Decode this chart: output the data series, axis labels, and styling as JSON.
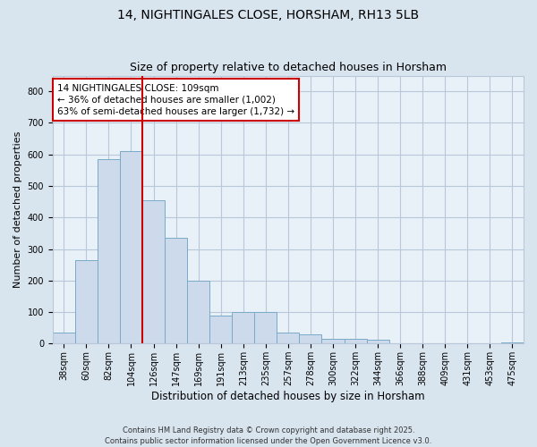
{
  "title": "14, NIGHTINGALES CLOSE, HORSHAM, RH13 5LB",
  "subtitle": "Size of property relative to detached houses in Horsham",
  "xlabel": "Distribution of detached houses by size in Horsham",
  "ylabel": "Number of detached properties",
  "categories": [
    "38sqm",
    "60sqm",
    "82sqm",
    "104sqm",
    "126sqm",
    "147sqm",
    "169sqm",
    "191sqm",
    "213sqm",
    "235sqm",
    "257sqm",
    "278sqm",
    "300sqm",
    "322sqm",
    "344sqm",
    "366sqm",
    "388sqm",
    "409sqm",
    "431sqm",
    "453sqm",
    "475sqm"
  ],
  "values": [
    35,
    265,
    585,
    610,
    455,
    335,
    200,
    90,
    100,
    100,
    35,
    30,
    15,
    15,
    12,
    0,
    0,
    0,
    0,
    0,
    5
  ],
  "bar_color": "#ccdaeb",
  "bar_edge_color": "#7aaac8",
  "vline_x": 3.5,
  "vline_color": "#cc0000",
  "annotation_text": "14 NIGHTINGALES CLOSE: 109sqm\n← 36% of detached houses are smaller (1,002)\n63% of semi-detached houses are larger (1,732) →",
  "annotation_box_color": "#ffffff",
  "annotation_box_edge": "#cc0000",
  "annotation_fontsize": 7.5,
  "title_fontsize": 10,
  "subtitle_fontsize": 9,
  "tick_fontsize": 7,
  "ylabel_fontsize": 8,
  "xlabel_fontsize": 8.5,
  "ylim": [
    0,
    850
  ],
  "yticks": [
    0,
    100,
    200,
    300,
    400,
    500,
    600,
    700,
    800
  ],
  "grid_color": "#b8c8d8",
  "background_color": "#d8e4ee",
  "plot_bg_color": "#e8f0f8",
  "footer": "Contains HM Land Registry data © Crown copyright and database right 2025.\nContains public sector information licensed under the Open Government Licence v3.0.",
  "footer_fontsize": 6
}
